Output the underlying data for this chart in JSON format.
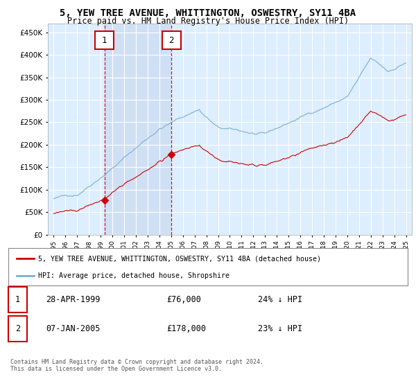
{
  "title": "5, YEW TREE AVENUE, WHITTINGTON, OSWESTRY, SY11 4BA",
  "subtitle": "Price paid vs. HM Land Registry's House Price Index (HPI)",
  "legend_line1": "5, YEW TREE AVENUE, WHITTINGTON, OSWESTRY, SY11 4BA (detached house)",
  "legend_line2": "HPI: Average price, detached house, Shropshire",
  "transaction1_date": "28-APR-1999",
  "transaction1_price": "£76,000",
  "transaction1_hpi": "24% ↓ HPI",
  "transaction2_date": "07-JAN-2005",
  "transaction2_price": "£178,000",
  "transaction2_hpi": "23% ↓ HPI",
  "footer": "Contains HM Land Registry data © Crown copyright and database right 2024.\nThis data is licensed under the Open Government Licence v3.0.",
  "red_color": "#cc0000",
  "blue_color": "#7aafd4",
  "shade_color": "#ddeeff",
  "background_plot": "#ddeeff",
  "grid_color": "#ffffff",
  "ylim": [
    0,
    470000
  ],
  "yticks": [
    0,
    50000,
    100000,
    150000,
    200000,
    250000,
    300000,
    350000,
    400000,
    450000
  ],
  "x_start_year": 1995,
  "x_end_year": 2025,
  "transaction1_year": 1999.32,
  "transaction2_year": 2005.03,
  "transaction1_price_val": 76000,
  "transaction2_price_val": 178000
}
